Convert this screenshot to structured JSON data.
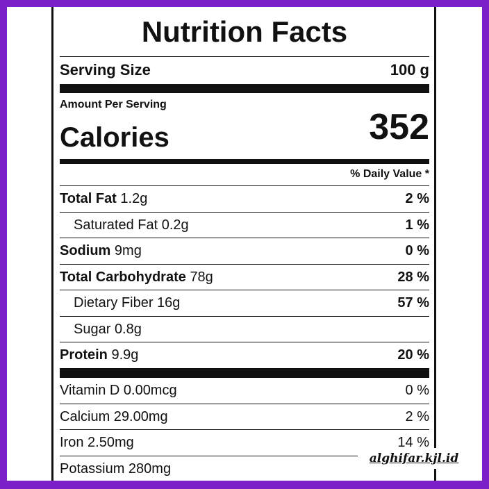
{
  "label": {
    "title": "Nutrition Facts",
    "serving": {
      "label": "Serving Size",
      "value": "100 g"
    },
    "amount_per_serving": "Amount Per Serving",
    "calories": {
      "label": "Calories",
      "value": "352"
    },
    "daily_value_header": "% Daily Value *",
    "nutrients": [
      {
        "name": "Total Fat",
        "amount": "1.2g",
        "dv": "2 %"
      },
      {
        "name": "Saturated Fat",
        "amount": "0.2g",
        "dv": "1 %"
      },
      {
        "name": "Sodium",
        "amount": "9mg",
        "dv": "0 %"
      },
      {
        "name": "Total Carbohydrate",
        "amount": "78g",
        "dv": "28 %"
      },
      {
        "name": "Dietary Fiber",
        "amount": "16g",
        "dv": "57 %"
      },
      {
        "name": "Sugar",
        "amount": "0.8g"
      },
      {
        "name": "Protein",
        "amount": "9.9g",
        "dv": "20 %"
      }
    ],
    "vitamins": [
      {
        "name": "Vitamin D 0.00mcg",
        "dv": "0 %"
      },
      {
        "name": "Calcium 29.00mg",
        "dv": "2 %"
      },
      {
        "name": "Iron 2.50mg",
        "dv": "14 %"
      },
      {
        "name": "Potassium 280mg"
      }
    ]
  },
  "watermark": "alghifar.kjl.id"
}
